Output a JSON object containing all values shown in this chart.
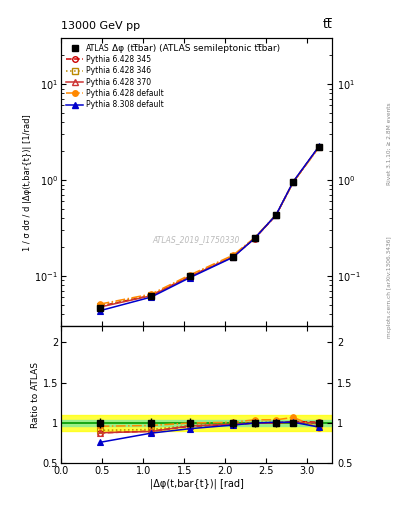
{
  "title_top": "13000 GeV pp",
  "title_right": "tt̅",
  "plot_title": "Δφ (tt̅bar) (ATLAS semileptonic tt̅bar)",
  "watermark": "ATLAS_2019_I1750330",
  "ylabel_main": "1 / σ dσ / d |Δφ(t,bar{t})| [1/rad]",
  "ylabel_ratio": "Ratio to ATLAS",
  "xlabel": "|Δφ(t,bar{t})| [rad]",
  "right_label": "Rivet 3.1.10; ≥ 2.8M events",
  "right_label2": "mcplots.cern.ch [arXiv:1306.3436]",
  "x_data": [
    0.471239,
    1.099557,
    1.570796,
    2.094395,
    2.356194,
    2.617994,
    2.827433,
    3.141593
  ],
  "atlas_y": [
    0.0469,
    0.0627,
    0.0996,
    0.16,
    0.249,
    0.431,
    0.952,
    2.21
  ],
  "atlas_yerr": [
    0.003,
    0.004,
    0.006,
    0.009,
    0.013,
    0.02,
    0.04,
    0.09
  ],
  "py6_345_y": [
    0.0485,
    0.063,
    0.0995,
    0.159,
    0.246,
    0.431,
    0.96,
    2.24
  ],
  "py6_346_y": [
    0.049,
    0.0635,
    0.101,
    0.162,
    0.249,
    0.433,
    0.955,
    2.22
  ],
  "py6_370_y": [
    0.0475,
    0.0625,
    0.099,
    0.159,
    0.247,
    0.431,
    0.958,
    2.23
  ],
  "py6_def_y": [
    0.051,
    0.065,
    0.103,
    0.165,
    0.251,
    0.435,
    0.95,
    2.2
  ],
  "py8_def_y": [
    0.0435,
    0.0605,
    0.0965,
    0.157,
    0.247,
    0.435,
    0.965,
    2.26
  ],
  "ratio_py6_345": [
    0.877,
    0.9,
    0.96,
    0.98,
    1.0,
    1.0,
    1.02,
    1.01
  ],
  "ratio_py6_346": [
    0.91,
    0.92,
    0.97,
    0.99,
    1.01,
    1.01,
    1.01,
    0.99
  ],
  "ratio_py6_370": [
    0.88,
    0.895,
    0.965,
    0.985,
    1.0,
    1.0,
    1.01,
    1.0
  ],
  "ratio_py6_def": [
    0.96,
    0.97,
    1.0,
    1.01,
    1.04,
    1.04,
    1.07,
    0.94
  ],
  "ratio_py8_def": [
    0.76,
    0.875,
    0.93,
    0.975,
    1.0,
    1.01,
    1.01,
    0.95
  ],
  "band_green_lo": 0.96,
  "band_green_hi": 1.04,
  "band_yellow_lo": 0.9,
  "band_yellow_hi": 1.1,
  "color_atlas": "#000000",
  "color_py6_345": "#cc0000",
  "color_py6_346": "#bb8800",
  "color_py6_370": "#cc3333",
  "color_py6_def": "#ff8800",
  "color_py8_def": "#0000cc",
  "ylim_main": [
    0.03,
    30
  ],
  "ylim_ratio": [
    0.5,
    2.2
  ],
  "xlim": [
    0.0,
    3.3
  ]
}
